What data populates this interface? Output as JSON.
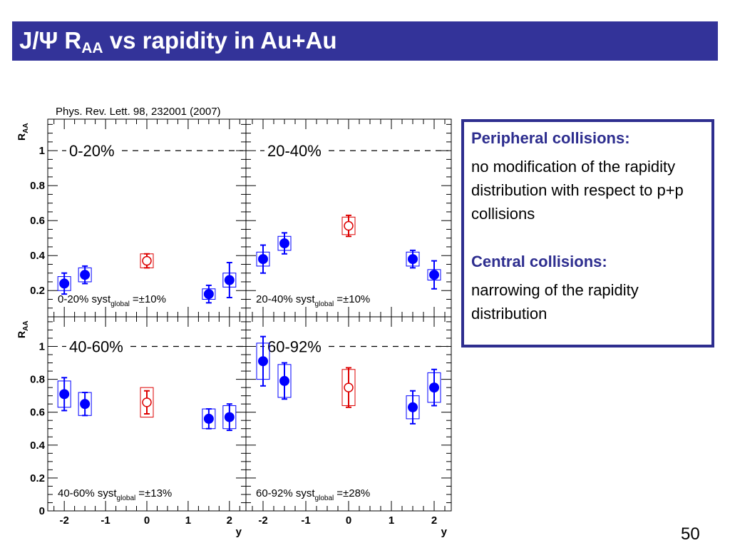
{
  "slide": {
    "title_main": "J/Ψ R",
    "title_sub": "AA",
    "title_rest": " vs rapidity in Au+Au",
    "page_number": "50"
  },
  "figure": {
    "citation": "Phys. Rev. Lett. 98, 232001 (2007)"
  },
  "info_box": {
    "peripheral_heading": "Peripheral collisions:",
    "peripheral_text": "no modification of the rapidity distribution with respect to p+p collisions",
    "central_heading": "Central collisions:",
    "central_text": "narrowing of the rapidity distribution"
  },
  "colors": {
    "title_bar": "#333399",
    "box_border": "#2e2e8f",
    "series_blue": "#0000ff",
    "series_red": "#dd0000"
  },
  "chart_data": [
    {
      "type": "scatter",
      "panel_label": "0-20%",
      "syst_label": "0-20%  syst",
      "syst_sub": "global",
      "syst_value": "=±10%",
      "xlabel": "y",
      "ylabel": "R_AA",
      "xlim": [
        -2.4,
        2.4
      ],
      "ylim": [
        0.05,
        1.18
      ],
      "y_ticks": [
        "0.2",
        "0.4",
        "0.6",
        "0.8",
        "1"
      ],
      "reference_line": 1,
      "series": [
        {
          "marker": "filled",
          "x": [
            -2.0,
            -1.5,
            1.5,
            2.0
          ],
          "y": [
            0.24,
            0.29,
            0.18,
            0.26
          ],
          "stat": [
            0.06,
            0.05,
            0.05,
            0.1
          ],
          "sys": [
            0.04,
            0.04,
            0.03,
            0.04
          ]
        },
        {
          "marker": "open",
          "x": [
            0.0
          ],
          "y": [
            0.37
          ],
          "stat": [
            0.04
          ],
          "sys": [
            0.04
          ]
        }
      ]
    },
    {
      "type": "scatter",
      "panel_label": "20-40%",
      "syst_label": "20-40%  syst",
      "syst_sub": "global",
      "syst_value": "=±10%",
      "xlabel": "y",
      "ylabel": "R_AA",
      "xlim": [
        -2.4,
        2.4
      ],
      "ylim": [
        0.05,
        1.18
      ],
      "series": [
        {
          "marker": "filled",
          "x": [
            -2.0,
            -1.5,
            1.5,
            2.0
          ],
          "y": [
            0.38,
            0.47,
            0.38,
            0.29
          ],
          "stat": [
            0.08,
            0.06,
            0.05,
            0.08
          ],
          "sys": [
            0.04,
            0.04,
            0.04,
            0.03
          ]
        },
        {
          "marker": "open",
          "x": [
            0.0
          ],
          "y": [
            0.57
          ],
          "stat": [
            0.06
          ],
          "sys": [
            0.05
          ]
        }
      ]
    },
    {
      "type": "scatter",
      "panel_label": "40-60%",
      "syst_label": "40-60%  syst",
      "syst_sub": "global",
      "syst_value": "=±13%",
      "xlabel": "y",
      "ylabel": "R_AA",
      "xlim": [
        -2.4,
        2.4
      ],
      "ylim": [
        0,
        1.18
      ],
      "x_ticks": [
        "-2",
        "-1",
        "0",
        "1",
        "2"
      ],
      "y_ticks": [
        "0",
        "0.2",
        "0.4",
        "0.6",
        "0.8",
        "1"
      ],
      "reference_line": 1,
      "series": [
        {
          "marker": "filled",
          "x": [
            -2.0,
            -1.5,
            1.5,
            2.0
          ],
          "y": [
            0.71,
            0.65,
            0.56,
            0.57
          ],
          "stat": [
            0.1,
            0.07,
            0.06,
            0.08
          ],
          "sys": [
            0.08,
            0.07,
            0.06,
            0.07
          ]
        },
        {
          "marker": "open",
          "x": [
            0.0
          ],
          "y": [
            0.66
          ],
          "stat": [
            0.07
          ],
          "sys": [
            0.09
          ]
        }
      ]
    },
    {
      "type": "scatter",
      "panel_label": "60-92%",
      "syst_label": "60-92%  syst",
      "syst_sub": "global",
      "syst_value": "=±28%",
      "xlabel": "y",
      "ylabel": "R_AA",
      "xlim": [
        -2.4,
        2.4
      ],
      "ylim": [
        0,
        1.18
      ],
      "x_ticks": [
        "-2",
        "-1",
        "0",
        "1",
        "2"
      ],
      "series": [
        {
          "marker": "filled",
          "x": [
            -2.0,
            -1.5,
            1.5,
            2.0
          ],
          "y": [
            0.91,
            0.79,
            0.63,
            0.75
          ],
          "stat": [
            0.15,
            0.11,
            0.1,
            0.11
          ],
          "sys": [
            0.11,
            0.1,
            0.07,
            0.09
          ]
        },
        {
          "marker": "open",
          "x": [
            0.0
          ],
          "y": [
            0.75
          ],
          "stat": [
            0.12
          ],
          "sys": [
            0.11
          ]
        }
      ]
    }
  ]
}
